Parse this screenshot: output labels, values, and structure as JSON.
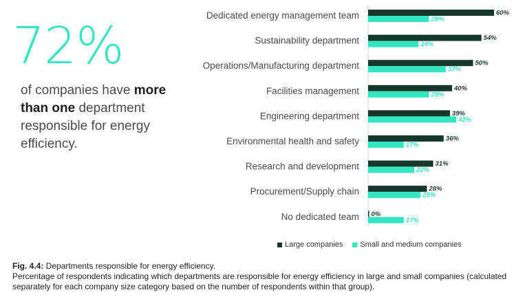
{
  "headline": {
    "stat": "72%",
    "text_1": "of companies have ",
    "text_bold": "more than one",
    "text_2": " department responsible for energy efficiency."
  },
  "chart_data": {
    "type": "bar",
    "orientation": "horizontal",
    "categories": [
      "Dedicated energy management team",
      "Sustainability department",
      "Operations/Manufacturing department",
      "Facilities management",
      "Engineering department",
      "Environmental health and safety",
      "Research and development",
      "Procurement/Supply chain",
      "No dedicated team"
    ],
    "series": [
      {
        "name": "Large companies",
        "values": [
          60,
          54,
          50,
          40,
          39,
          36,
          31,
          28,
          0
        ],
        "labels": [
          "60%",
          "54%",
          "50%",
          "40%",
          "39%",
          "36%",
          "31%",
          "28%",
          "0%"
        ]
      },
      {
        "name": "Small and medium companies",
        "values": [
          29,
          24,
          37,
          29,
          42,
          17,
          22,
          25,
          17
        ],
        "labels": [
          "29%",
          "24%",
          "37%",
          "29%",
          "42%",
          "17%",
          "22%",
          "25%",
          "17%"
        ]
      }
    ],
    "xlim": [
      0,
      60
    ],
    "legend_position": "bottom",
    "grid": false
  },
  "colors": {
    "large": "#16372c",
    "small": "#33e6c1",
    "accent": "#33e6c1"
  },
  "caption": {
    "fig_num": "Fig. 4.4:",
    "title": " Departments responsible for energy efficiency.",
    "body": "Percentage of respondents indicating which departments are responsible for energy efficiency in large and small companies (calculated separately for each company size category based on the number of respondents within that group)."
  }
}
